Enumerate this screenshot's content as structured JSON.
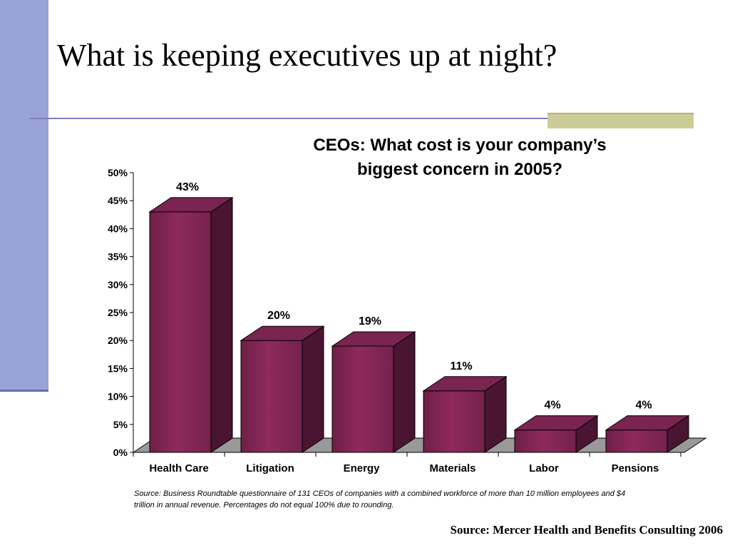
{
  "slide": {
    "title": "What is keeping executives up at night?",
    "source_note": "Source: Mercer Health and Benefits Consulting 2006",
    "footnote": "Source: Business Roundtable questionnaire of 131 CEOs of companies with a combined workforce of more than 10 million employees and $4 trillion in annual revenue. Percentages do not equal 100% due to rounding."
  },
  "colors": {
    "bar_front": "#8e2a5c",
    "bar_top": "#7a2450",
    "bar_side": "#4a1530",
    "floor": "#999999",
    "left_bar": "#99a3d6",
    "accent": "#cccc99"
  },
  "chart_data": {
    "type": "bar",
    "title_lines": [
      "CEOs: What cost is your company’s",
      "biggest concern in 2005?"
    ],
    "categories": [
      "Health Care",
      "Litigation",
      "Energy",
      "Materials",
      "Labor",
      "Pensions"
    ],
    "values": [
      43,
      20,
      19,
      11,
      4,
      4
    ],
    "data_labels": [
      "43%",
      "20%",
      "19%",
      "11%",
      "4%",
      "4%"
    ],
    "ylim": [
      0,
      50
    ],
    "yticks": [
      "0%",
      "5%",
      "10%",
      "15%",
      "20%",
      "25%",
      "30%",
      "35%",
      "40%",
      "45%",
      "50%"
    ],
    "xlabel": "",
    "ylabel": "",
    "grid": false,
    "legend": "none",
    "style": "3d-column"
  }
}
